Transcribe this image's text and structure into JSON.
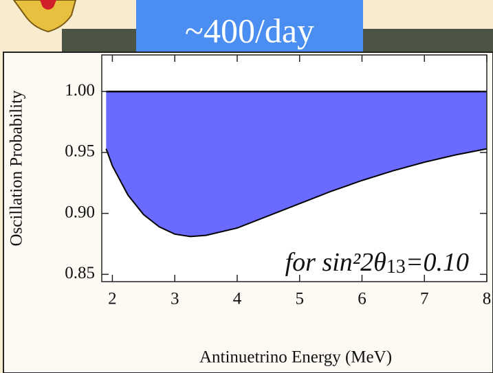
{
  "banner": "~400/day",
  "chart_data": {
    "type": "area",
    "x_label": "Antinuetrino Energy (MeV)",
    "y_label": "Oscillation Probability",
    "annotation_prefix": "for sin²2θ",
    "annotation_subscript": "13",
    "annotation_suffix": "=0.10",
    "x": [
      1.9,
      2.0,
      2.25,
      2.5,
      2.75,
      3.0,
      3.25,
      3.5,
      4.0,
      4.5,
      5.0,
      5.5,
      6.0,
      6.5,
      7.0,
      7.5,
      8.0
    ],
    "series": [
      {
        "color": "#6a6aff",
        "values": [
          0.953,
          0.939,
          0.915,
          0.899,
          0.889,
          0.883,
          0.881,
          0.882,
          0.888,
          0.898,
          0.908,
          0.918,
          0.927,
          0.935,
          0.942,
          0.948,
          0.953
        ]
      }
    ],
    "fill_to": 1.0,
    "xlim": [
      1.83,
      8.0
    ],
    "ylim": [
      0.844,
      1.03
    ],
    "xticks": [
      2,
      3,
      4,
      5,
      6,
      7,
      8
    ],
    "yticks": [
      {
        "value": 1.0,
        "label": "1.00"
      },
      {
        "value": 0.95,
        "label": "0.95"
      },
      {
        "value": 0.9,
        "label": "0.90"
      },
      {
        "value": 0.85,
        "label": "0.85"
      }
    ]
  }
}
